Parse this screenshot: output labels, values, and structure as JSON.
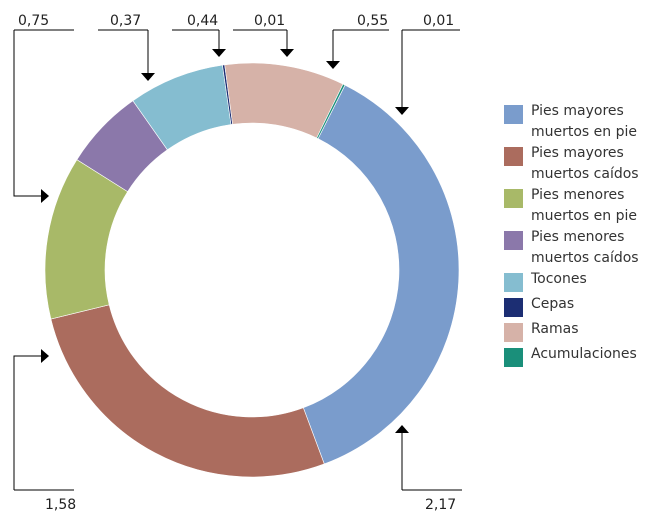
{
  "chart_data": {
    "type": "pie",
    "donut": true,
    "title": "",
    "series": [
      {
        "name": "Pies mayores muertos en pie",
        "value": 2.17,
        "label": "2,17",
        "color": "#7a9ccc"
      },
      {
        "name": "Pies mayores muertos caídos",
        "value": 1.58,
        "label": "1,58",
        "color": "#ab6c5e"
      },
      {
        "name": "Pies menores muertos en pie",
        "value": 0.75,
        "label": "0,75",
        "color": "#a8b968"
      },
      {
        "name": "Pies menores muertos caídos",
        "value": 0.37,
        "label": "0,37",
        "color": "#8b78aa"
      },
      {
        "name": "Tocones",
        "value": 0.44,
        "label": "0,44",
        "color": "#85bdd0"
      },
      {
        "name": "Cepas",
        "value": 0.01,
        "label": "0,01",
        "color": "#1c2e73"
      },
      {
        "name": "Ramas",
        "value": 0.55,
        "label": "0,55",
        "color": "#d6b2a8"
      },
      {
        "name": "Acumulaciones",
        "value": 0.01,
        "label": "0,01",
        "color": "#1a8f7a"
      }
    ],
    "legend_position": "right"
  }
}
